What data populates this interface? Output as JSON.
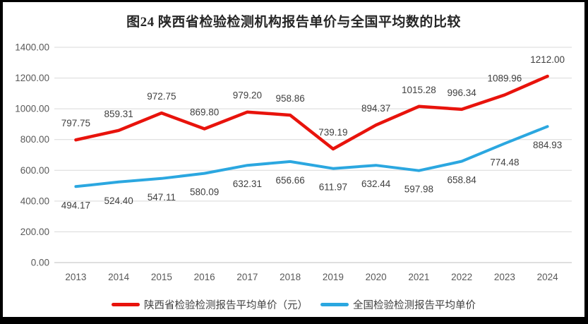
{
  "chart_data": {
    "type": "line",
    "title": "图24 陕西省检验检测机构报告单价与全国平均数的比较",
    "categories": [
      "2013",
      "2014",
      "2015",
      "2016",
      "2017",
      "2018",
      "2019",
      "2020",
      "2021",
      "2022",
      "2023",
      "2024"
    ],
    "series": [
      {
        "name": "陕西省检验检测报告平均单价（元）",
        "color": "#e8130c",
        "stroke_width": 4.5,
        "label_position": "above",
        "values": [
          797.75,
          859.31,
          972.75,
          869.8,
          979.2,
          958.86,
          739.19,
          894.37,
          1015.28,
          996.34,
          1089.96,
          1212.0
        ]
      },
      {
        "name": "全国检验检测报告平均单价",
        "color": "#2ba7e0",
        "stroke_width": 4,
        "label_position": "below",
        "values": [
          494.17,
          524.4,
          547.11,
          580.09,
          632.31,
          656.66,
          611.97,
          632.44,
          597.98,
          658.84,
          774.48,
          884.93
        ]
      }
    ],
    "ylim": [
      0,
      1400
    ],
    "ytick_step": 200,
    "ytick_format": "0.00",
    "grid": true,
    "legend_position": "bottom",
    "colors": {
      "gridline": "#d9d9d9",
      "axis_line": "#bfbfbf",
      "tick_text": "#595959",
      "data_label_text": "#404040",
      "title_text": "#262626",
      "frame_border": "#000000",
      "background": "#ffffff"
    }
  }
}
